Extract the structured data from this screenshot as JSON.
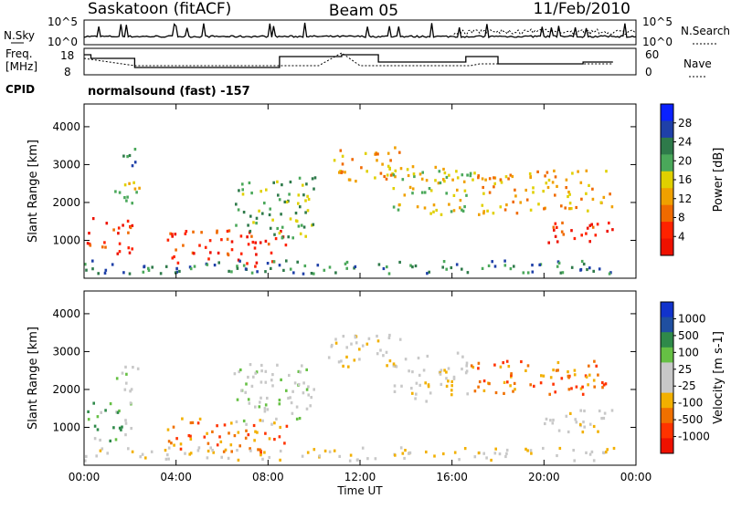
{
  "header": {
    "station": "Saskatoon (fitACF)",
    "beam": "Beam 05",
    "date": "11/Feb/2010"
  },
  "sky_panel": {
    "left_label": "N.Sky",
    "right_label": "N.Search",
    "ticks_left": [
      "10^5",
      "10^0"
    ],
    "ticks_right": [
      "10^5",
      "10^0"
    ]
  },
  "freq_panel": {
    "label_line1": "Freq.",
    "label_line2": "[MHz]",
    "ticks_left": [
      "18",
      "8"
    ],
    "right_label": "Nave",
    "ticks_right": [
      "60",
      "0"
    ]
  },
  "cpid": {
    "label": "CPID",
    "program": "normalsound (fast) -157"
  },
  "colors": {
    "power": [
      "#0a21ff",
      "#1f40a8",
      "#2e7a4a",
      "#4aa85a",
      "#e0d000",
      "#f0a000",
      "#f06a00",
      "#ff2200",
      "#ee1100"
    ],
    "velocity": [
      "#1133cc",
      "#1f4fa0",
      "#2f8a4a",
      "#66c044",
      "#c8c8c8",
      "#c8c8c8",
      "#f2b000",
      "#f07000",
      "#ff3300",
      "#ee1100"
    ]
  },
  "chart_data": [
    {
      "type": "heatmap",
      "name": "power",
      "ylabel": "Slant Range [km]",
      "yticks": [
        "1000",
        "2000",
        "3000",
        "4000"
      ],
      "xticks": [
        "00:00",
        "04:00",
        "08:00",
        "12:00",
        "16:00",
        "20:00",
        "00:00"
      ],
      "xlabel": "Time UT",
      "colorbar": {
        "label": "Power [dB]",
        "ticks": [
          "4",
          "8",
          "12",
          "16",
          "20",
          "24",
          "28"
        ]
      },
      "regions": [
        {
          "t0": 0.1,
          "t1": 2.1,
          "r0": 650,
          "r1": 1700,
          "level": 7
        },
        {
          "t0": 1.3,
          "t1": 2.4,
          "r0": 1850,
          "r1": 2700,
          "level": 4
        },
        {
          "t0": 1.2,
          "t1": 2.2,
          "r0": 3000,
          "r1": 3500,
          "level": 2
        },
        {
          "t0": 3.6,
          "t1": 8.8,
          "r0": 350,
          "r1": 1300,
          "level": 7
        },
        {
          "t0": 6.5,
          "t1": 10.0,
          "r0": 1100,
          "r1": 2700,
          "level": 3
        },
        {
          "t0": 10.6,
          "t1": 13.8,
          "r0": 2600,
          "r1": 3500,
          "level": 5
        },
        {
          "t0": 13.4,
          "t1": 16.8,
          "r0": 1700,
          "r1": 3000,
          "level": 4
        },
        {
          "t0": 16.8,
          "t1": 23.0,
          "r0": 1700,
          "r1": 2900,
          "level": 5
        },
        {
          "t0": 19.8,
          "t1": 23.0,
          "r0": 900,
          "r1": 1500,
          "level": 7
        },
        {
          "t0": 0.0,
          "t1": 23.0,
          "r0": 150,
          "r1": 500,
          "level": 2
        }
      ]
    },
    {
      "type": "heatmap",
      "name": "velocity",
      "ylabel": "Slant Range [km]",
      "yticks": [
        "1000",
        "2000",
        "3000",
        "4000"
      ],
      "xticks": [
        "00:00",
        "04:00",
        "08:00",
        "12:00",
        "16:00",
        "20:00",
        "00:00"
      ],
      "xlabel": "Time UT",
      "colorbar": {
        "label": "Velocity [m s-1]",
        "ticks": [
          "1000",
          "500",
          "100",
          "25",
          "-25",
          "-100",
          "-500",
          "-1000"
        ]
      },
      "regions": [
        {
          "t0": 0.1,
          "t1": 2.1,
          "r0": 650,
          "r1": 1700,
          "level": 3
        },
        {
          "t0": 1.3,
          "t1": 2.4,
          "r0": 1850,
          "r1": 2700,
          "level": 4
        },
        {
          "t0": 3.6,
          "t1": 8.8,
          "r0": 350,
          "r1": 1300,
          "level": 7
        },
        {
          "t0": 6.5,
          "t1": 10.0,
          "r0": 1100,
          "r1": 2700,
          "level": 4
        },
        {
          "t0": 10.6,
          "t1": 13.8,
          "r0": 2600,
          "r1": 3500,
          "level": 5
        },
        {
          "t0": 13.4,
          "t1": 16.8,
          "r0": 1700,
          "r1": 3000,
          "level": 5
        },
        {
          "t0": 16.8,
          "t1": 23.0,
          "r0": 1900,
          "r1": 2800,
          "level": 7
        },
        {
          "t0": 19.8,
          "t1": 23.0,
          "r0": 900,
          "r1": 1500,
          "level": 5
        },
        {
          "t0": 0.0,
          "t1": 23.0,
          "r0": 150,
          "r1": 500,
          "level": 5
        }
      ]
    }
  ]
}
